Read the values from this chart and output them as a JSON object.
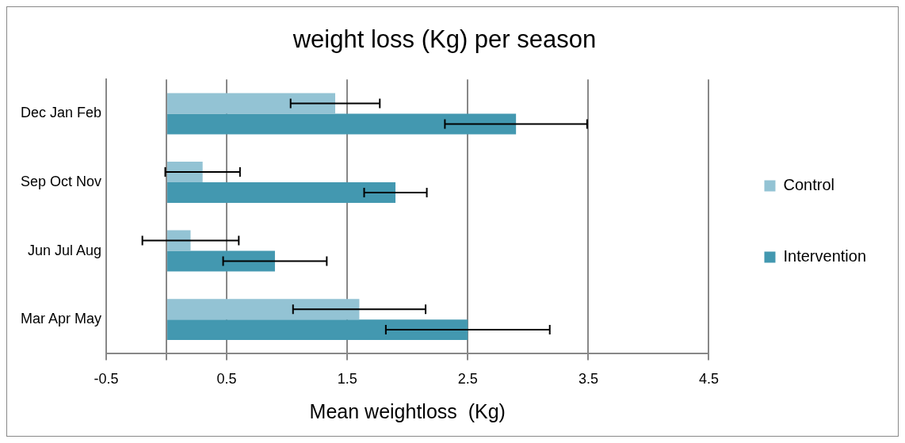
{
  "chart_data": {
    "type": "bar",
    "orientation": "horizontal",
    "title": "weight loss (Kg) per season",
    "xlabel": "Mean weightloss  (Kg)",
    "categories": [
      "Dec Jan Feb",
      "Sep Oct Nov",
      "Jun Jul Aug",
      "Mar Apr May"
    ],
    "series": [
      {
        "name": "Control",
        "color": "#93c3d4",
        "values": [
          1.4,
          0.3,
          0.2,
          1.6
        ],
        "errors": [
          0.37,
          0.31,
          0.4,
          0.55
        ]
      },
      {
        "name": "Intervention",
        "color": "#4398b0",
        "values": [
          2.9,
          1.9,
          0.9,
          2.5
        ],
        "errors": [
          0.59,
          0.26,
          0.43,
          0.68
        ]
      }
    ],
    "xlim": [
      -0.5,
      4.5
    ],
    "xticks": [
      -0.5,
      {
        "value": 0,
        "label": null
      },
      0.5,
      1.5,
      2.5,
      3.5,
      4.5
    ],
    "grid": "x",
    "legend": "right"
  }
}
